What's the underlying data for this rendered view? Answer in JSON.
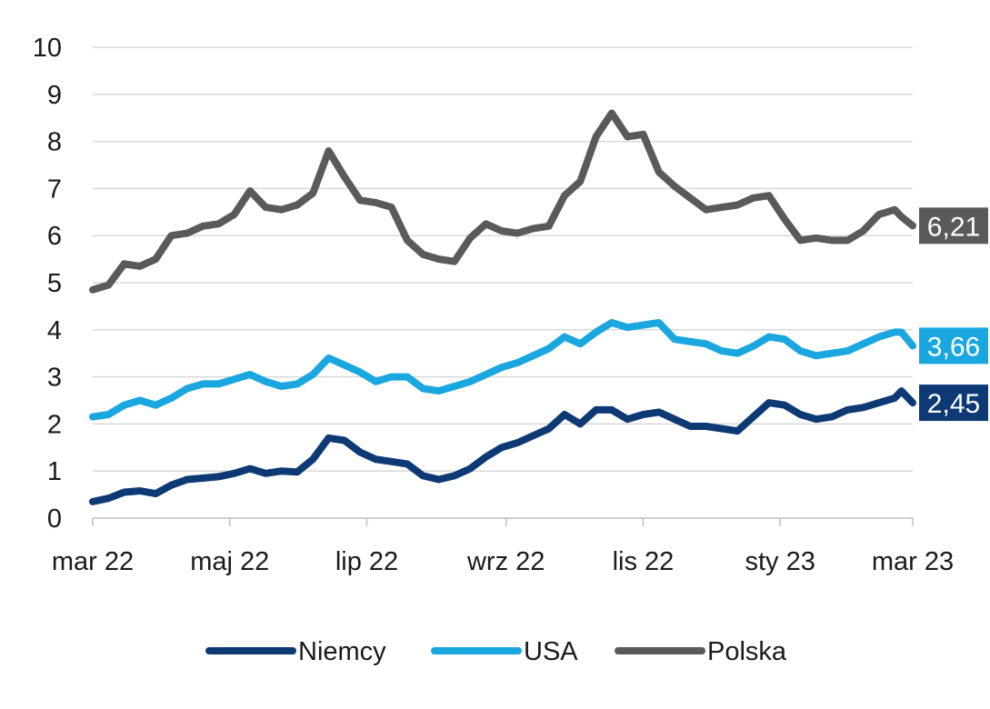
{
  "chart_data": {
    "type": "line",
    "title": "",
    "xlabel": "",
    "ylabel": "",
    "ylim": [
      0,
      10
    ],
    "yticks": [
      "0",
      "1",
      "2",
      "3",
      "4",
      "5",
      "6",
      "7",
      "8",
      "9",
      "10"
    ],
    "xlim": [
      "2022-03-01",
      "2023-03-01"
    ],
    "xticks": [
      {
        "date": "2022-03-01",
        "label": "mar 22"
      },
      {
        "date": "2022-05-01",
        "label": "maj 22"
      },
      {
        "date": "2022-07-01",
        "label": "lip 22"
      },
      {
        "date": "2022-09-01",
        "label": "wrz 22"
      },
      {
        "date": "2022-11-01",
        "label": "lis 22"
      },
      {
        "date": "2023-01-01",
        "label": "sty 23"
      },
      {
        "date": "2023-03-01",
        "label": "mar 23"
      }
    ],
    "grid": "horizontal",
    "legend_position": "bottom",
    "series": [
      {
        "name": "Niemcy",
        "color": "#0d3a74",
        "end_label": "2,45",
        "points": [
          [
            "2022-03-01",
            0.35
          ],
          [
            "2022-03-08",
            0.42
          ],
          [
            "2022-03-15",
            0.55
          ],
          [
            "2022-03-22",
            0.58
          ],
          [
            "2022-03-29",
            0.52
          ],
          [
            "2022-04-05",
            0.7
          ],
          [
            "2022-04-12",
            0.82
          ],
          [
            "2022-04-19",
            0.85
          ],
          [
            "2022-04-26",
            0.88
          ],
          [
            "2022-05-03",
            0.95
          ],
          [
            "2022-05-10",
            1.05
          ],
          [
            "2022-05-17",
            0.95
          ],
          [
            "2022-05-24",
            1.0
          ],
          [
            "2022-05-31",
            0.98
          ],
          [
            "2022-06-07",
            1.25
          ],
          [
            "2022-06-14",
            1.7
          ],
          [
            "2022-06-21",
            1.65
          ],
          [
            "2022-06-28",
            1.4
          ],
          [
            "2022-07-05",
            1.25
          ],
          [
            "2022-07-12",
            1.2
          ],
          [
            "2022-07-19",
            1.15
          ],
          [
            "2022-07-26",
            0.9
          ],
          [
            "2022-08-02",
            0.82
          ],
          [
            "2022-08-09",
            0.9
          ],
          [
            "2022-08-16",
            1.05
          ],
          [
            "2022-08-23",
            1.3
          ],
          [
            "2022-08-30",
            1.5
          ],
          [
            "2022-09-06",
            1.6
          ],
          [
            "2022-09-13",
            1.75
          ],
          [
            "2022-09-20",
            1.9
          ],
          [
            "2022-09-27",
            2.2
          ],
          [
            "2022-10-04",
            2.0
          ],
          [
            "2022-10-11",
            2.3
          ],
          [
            "2022-10-18",
            2.3
          ],
          [
            "2022-10-25",
            2.1
          ],
          [
            "2022-11-01",
            2.2
          ],
          [
            "2022-11-08",
            2.25
          ],
          [
            "2022-11-15",
            2.1
          ],
          [
            "2022-11-22",
            1.95
          ],
          [
            "2022-11-29",
            1.95
          ],
          [
            "2022-12-06",
            1.9
          ],
          [
            "2022-12-13",
            1.85
          ],
          [
            "2022-12-20",
            2.15
          ],
          [
            "2022-12-27",
            2.45
          ],
          [
            "2023-01-03",
            2.4
          ],
          [
            "2023-01-10",
            2.2
          ],
          [
            "2023-01-17",
            2.1
          ],
          [
            "2023-01-24",
            2.15
          ],
          [
            "2023-01-31",
            2.3
          ],
          [
            "2023-02-07",
            2.35
          ],
          [
            "2023-02-14",
            2.45
          ],
          [
            "2023-02-21",
            2.55
          ],
          [
            "2023-02-24",
            2.7
          ],
          [
            "2023-03-01",
            2.45
          ]
        ]
      },
      {
        "name": "USA",
        "color": "#1aa6df",
        "end_label": "3,66",
        "points": [
          [
            "2022-03-01",
            2.15
          ],
          [
            "2022-03-08",
            2.2
          ],
          [
            "2022-03-15",
            2.4
          ],
          [
            "2022-03-22",
            2.5
          ],
          [
            "2022-03-29",
            2.4
          ],
          [
            "2022-04-05",
            2.55
          ],
          [
            "2022-04-12",
            2.75
          ],
          [
            "2022-04-19",
            2.85
          ],
          [
            "2022-04-26",
            2.85
          ],
          [
            "2022-05-03",
            2.95
          ],
          [
            "2022-05-10",
            3.05
          ],
          [
            "2022-05-17",
            2.9
          ],
          [
            "2022-05-24",
            2.8
          ],
          [
            "2022-05-31",
            2.85
          ],
          [
            "2022-06-07",
            3.05
          ],
          [
            "2022-06-14",
            3.4
          ],
          [
            "2022-06-21",
            3.25
          ],
          [
            "2022-06-28",
            3.1
          ],
          [
            "2022-07-05",
            2.9
          ],
          [
            "2022-07-12",
            3.0
          ],
          [
            "2022-07-19",
            3.0
          ],
          [
            "2022-07-26",
            2.75
          ],
          [
            "2022-08-02",
            2.7
          ],
          [
            "2022-08-09",
            2.8
          ],
          [
            "2022-08-16",
            2.9
          ],
          [
            "2022-08-23",
            3.05
          ],
          [
            "2022-08-30",
            3.2
          ],
          [
            "2022-09-06",
            3.3
          ],
          [
            "2022-09-13",
            3.45
          ],
          [
            "2022-09-20",
            3.6
          ],
          [
            "2022-09-27",
            3.85
          ],
          [
            "2022-10-04",
            3.7
          ],
          [
            "2022-10-11",
            3.95
          ],
          [
            "2022-10-18",
            4.15
          ],
          [
            "2022-10-25",
            4.05
          ],
          [
            "2022-11-01",
            4.1
          ],
          [
            "2022-11-08",
            4.15
          ],
          [
            "2022-11-15",
            3.8
          ],
          [
            "2022-11-22",
            3.75
          ],
          [
            "2022-11-29",
            3.7
          ],
          [
            "2022-12-06",
            3.55
          ],
          [
            "2022-12-13",
            3.5
          ],
          [
            "2022-12-20",
            3.65
          ],
          [
            "2022-12-27",
            3.85
          ],
          [
            "2023-01-03",
            3.8
          ],
          [
            "2023-01-10",
            3.55
          ],
          [
            "2023-01-17",
            3.45
          ],
          [
            "2023-01-24",
            3.5
          ],
          [
            "2023-01-31",
            3.55
          ],
          [
            "2023-02-07",
            3.7
          ],
          [
            "2023-02-14",
            3.85
          ],
          [
            "2023-02-21",
            3.95
          ],
          [
            "2023-02-24",
            3.95
          ],
          [
            "2023-03-01",
            3.66
          ]
        ]
      },
      {
        "name": "Polska",
        "color": "#5a5a5a",
        "end_label": "6,21",
        "points": [
          [
            "2022-03-01",
            4.85
          ],
          [
            "2022-03-08",
            4.95
          ],
          [
            "2022-03-15",
            5.4
          ],
          [
            "2022-03-22",
            5.35
          ],
          [
            "2022-03-29",
            5.5
          ],
          [
            "2022-04-05",
            6.0
          ],
          [
            "2022-04-12",
            6.05
          ],
          [
            "2022-04-19",
            6.2
          ],
          [
            "2022-04-26",
            6.25
          ],
          [
            "2022-05-03",
            6.45
          ],
          [
            "2022-05-10",
            6.95
          ],
          [
            "2022-05-17",
            6.6
          ],
          [
            "2022-05-24",
            6.55
          ],
          [
            "2022-05-31",
            6.65
          ],
          [
            "2022-06-07",
            6.9
          ],
          [
            "2022-06-14",
            7.8
          ],
          [
            "2022-06-21",
            7.25
          ],
          [
            "2022-06-28",
            6.75
          ],
          [
            "2022-07-05",
            6.7
          ],
          [
            "2022-07-12",
            6.6
          ],
          [
            "2022-07-19",
            5.9
          ],
          [
            "2022-07-26",
            5.6
          ],
          [
            "2022-08-02",
            5.5
          ],
          [
            "2022-08-09",
            5.45
          ],
          [
            "2022-08-16",
            5.95
          ],
          [
            "2022-08-23",
            6.25
          ],
          [
            "2022-08-30",
            6.1
          ],
          [
            "2022-09-06",
            6.05
          ],
          [
            "2022-09-13",
            6.15
          ],
          [
            "2022-09-20",
            6.2
          ],
          [
            "2022-09-27",
            6.85
          ],
          [
            "2022-10-04",
            7.15
          ],
          [
            "2022-10-11",
            8.1
          ],
          [
            "2022-10-18",
            8.6
          ],
          [
            "2022-10-25",
            8.1
          ],
          [
            "2022-11-01",
            8.15
          ],
          [
            "2022-11-08",
            7.35
          ],
          [
            "2022-11-15",
            7.05
          ],
          [
            "2022-11-22",
            6.8
          ],
          [
            "2022-11-29",
            6.55
          ],
          [
            "2022-12-06",
            6.6
          ],
          [
            "2022-12-13",
            6.65
          ],
          [
            "2022-12-20",
            6.8
          ],
          [
            "2022-12-27",
            6.85
          ],
          [
            "2023-01-03",
            6.35
          ],
          [
            "2023-01-10",
            5.9
          ],
          [
            "2023-01-17",
            5.95
          ],
          [
            "2023-01-24",
            5.9
          ],
          [
            "2023-01-31",
            5.9
          ],
          [
            "2023-02-07",
            6.1
          ],
          [
            "2023-02-14",
            6.45
          ],
          [
            "2023-02-21",
            6.55
          ],
          [
            "2023-02-24",
            6.4
          ],
          [
            "2023-03-01",
            6.21
          ]
        ]
      }
    ]
  }
}
